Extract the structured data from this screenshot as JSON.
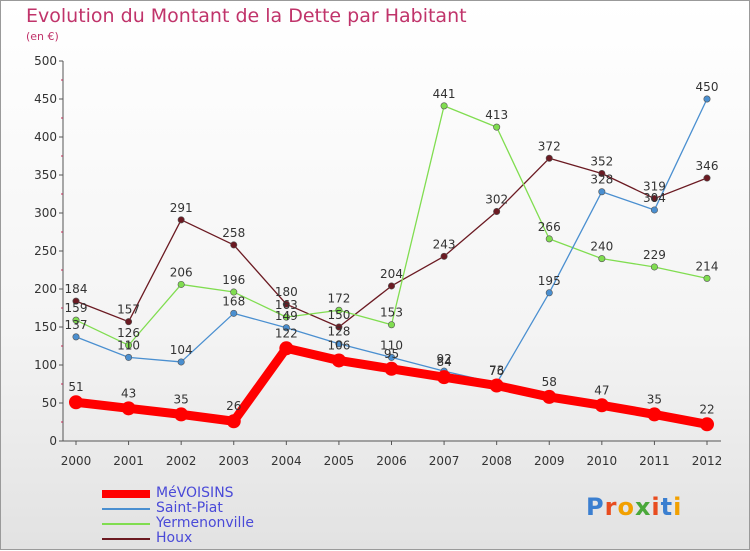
{
  "title": "Evolution du Montant de la Dette par Habitant",
  "subtitle": "(en €)",
  "logo": {
    "text": "Proxiti",
    "colors": [
      "#3b7fd0",
      "#e84c1f",
      "#f2a000",
      "#4aa83a",
      "#e84c1f",
      "#3b7fd0",
      "#f2a000"
    ]
  },
  "chart_data": {
    "type": "line",
    "x": [
      "2000",
      "2001",
      "2002",
      "2003",
      "2004",
      "2005",
      "2006",
      "2007",
      "2008",
      "2009",
      "2010",
      "2011",
      "2012"
    ],
    "ylim": [
      0,
      500
    ],
    "yticks": [
      0,
      50,
      100,
      150,
      200,
      250,
      300,
      350,
      400,
      450,
      500
    ],
    "grid": false,
    "legend_position": "bottom-left",
    "series": [
      {
        "name": "MéVOISINS",
        "color": "#ff0000",
        "values": [
          51,
          43,
          35,
          26,
          122,
          106,
          95,
          84,
          73,
          58,
          47,
          35,
          22
        ]
      },
      {
        "name": "Saint-Piat",
        "color": "#4a8fd0",
        "values": [
          137,
          110,
          104,
          168,
          149,
          128,
          110,
          92,
          76,
          195,
          328,
          304,
          450
        ]
      },
      {
        "name": "Yermenonville",
        "color": "#80dd50",
        "values": [
          159,
          126,
          206,
          196,
          163,
          172,
          153,
          441,
          413,
          266,
          240,
          229,
          214
        ]
      },
      {
        "name": "Houx",
        "color": "#6b1a22",
        "values": [
          184,
          157,
          291,
          258,
          180,
          150,
          204,
          243,
          302,
          372,
          352,
          319,
          346
        ]
      }
    ]
  }
}
